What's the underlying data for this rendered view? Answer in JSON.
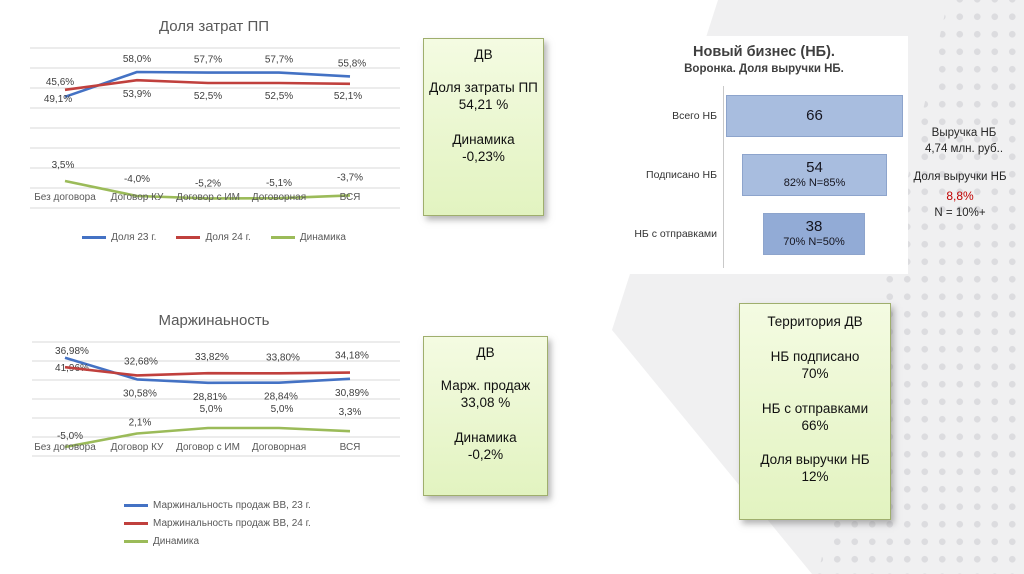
{
  "slide": {
    "background_accent": "#f0f0f1",
    "dot_color": "#dcdcdf"
  },
  "chart_data": [
    {
      "id": "cost-share",
      "type": "line",
      "title": "Доля затрат ПП",
      "categories": [
        "Без договора",
        "Договор КУ",
        "Договор с ИМ",
        "Договорная",
        "ВСЯ"
      ],
      "ylim": [
        -10,
        70
      ],
      "grid": true,
      "legend_position": "bottom-center",
      "series": [
        {
          "name": "Доля 23 г.",
          "color": "#4472c4",
          "values": [
            45.6,
            58.0,
            57.7,
            57.7,
            55.8
          ],
          "labels": [
            "45,6%",
            "58,0%",
            "57,7%",
            "57,7%",
            "55,8%"
          ]
        },
        {
          "name": "Доля 24 г.",
          "color": "#c0403d",
          "values": [
            49.1,
            53.9,
            52.5,
            52.5,
            52.1
          ],
          "labels": [
            "49,1%",
            "53,9%",
            "52,5%",
            "52,5%",
            "52,1%"
          ]
        },
        {
          "name": "Динамика",
          "color": "#9bbb59",
          "values": [
            3.5,
            -4.0,
            -5.2,
            -5.1,
            -3.7
          ],
          "labels": [
            "3,5%",
            "-4,0%",
            "-5,2%",
            "-5,1%",
            "-3,7%"
          ]
        }
      ]
    },
    {
      "id": "margin",
      "type": "line",
      "title": "Маржинаьность",
      "categories": [
        "Без договора",
        "Договор КУ",
        "Договор с ИМ",
        "Договорная",
        "ВСЯ"
      ],
      "ylim": [
        -10,
        50
      ],
      "grid": true,
      "legend_position": "bottom-left",
      "series": [
        {
          "name": "Маржинальность продаж ВВ,  23 г.",
          "color": "#4472c4",
          "values": [
            41.96,
            30.58,
            28.81,
            28.84,
            30.89
          ],
          "labels": [
            "41,96%",
            "30,58%",
            "28,81%",
            "28,84%",
            "30,89%"
          ]
        },
        {
          "name": "Маржинальность продаж ВВ, 24 г.",
          "color": "#c0403d",
          "values": [
            36.98,
            32.68,
            33.82,
            33.8,
            34.18
          ],
          "labels": [
            "36,98%",
            "32,68%",
            "33,82%",
            "33,80%",
            "34,18%"
          ]
        },
        {
          "name": "Динамика",
          "color": "#9bbb59",
          "values": [
            -5.0,
            2.1,
            5.0,
            5.0,
            3.3
          ],
          "labels": [
            "-5,0%",
            "2,1%",
            "5,0%",
            "5,0%",
            "3,3%"
          ]
        }
      ]
    },
    {
      "id": "new-business-funnel",
      "type": "bar",
      "title": "Новый бизнес (НБ).",
      "subtitle": "Воронка. Доля выручки НБ.",
      "orientation": "horizontal-funnel",
      "categories": [
        "Всего НБ",
        "Подписано НБ",
        "НБ с отправками"
      ],
      "values": [
        66,
        54,
        38
      ],
      "value_labels": [
        "66",
        "54",
        "38"
      ],
      "bar_sublabels": [
        "",
        "82% N=85%",
        "70% N=50%"
      ],
      "bar_colors": [
        "#a8bddf",
        "#a8bddf",
        "#92abd6"
      ]
    }
  ],
  "callouts": {
    "cost_box": {
      "region": "ДВ",
      "metric": "Доля затраты ПП",
      "value": "54,21 %",
      "dynamics_label": "Динамика",
      "dynamics_value": "-0,23%"
    },
    "margin_box": {
      "region": "ДВ",
      "metric": "Марж. продаж",
      "value": "33,08 %",
      "dynamics_label": "Динамика",
      "dynamics_value": "-0,2%"
    },
    "territory_box": {
      "title": "Территория ДВ",
      "items": [
        {
          "label": "НБ подписано",
          "value": "70%"
        },
        {
          "label": "НБ с отправками",
          "value": "66%"
        },
        {
          "label": "Доля выручки НБ",
          "value": "12%"
        }
      ]
    },
    "revenue_note": {
      "line1": "Выручка НБ",
      "line2": "4,74 млн. руб.."
    },
    "share_note": {
      "title": "Доля выручки НБ",
      "value": "8,8%",
      "value_color": "#c00000",
      "note": "N = 10%+"
    }
  }
}
